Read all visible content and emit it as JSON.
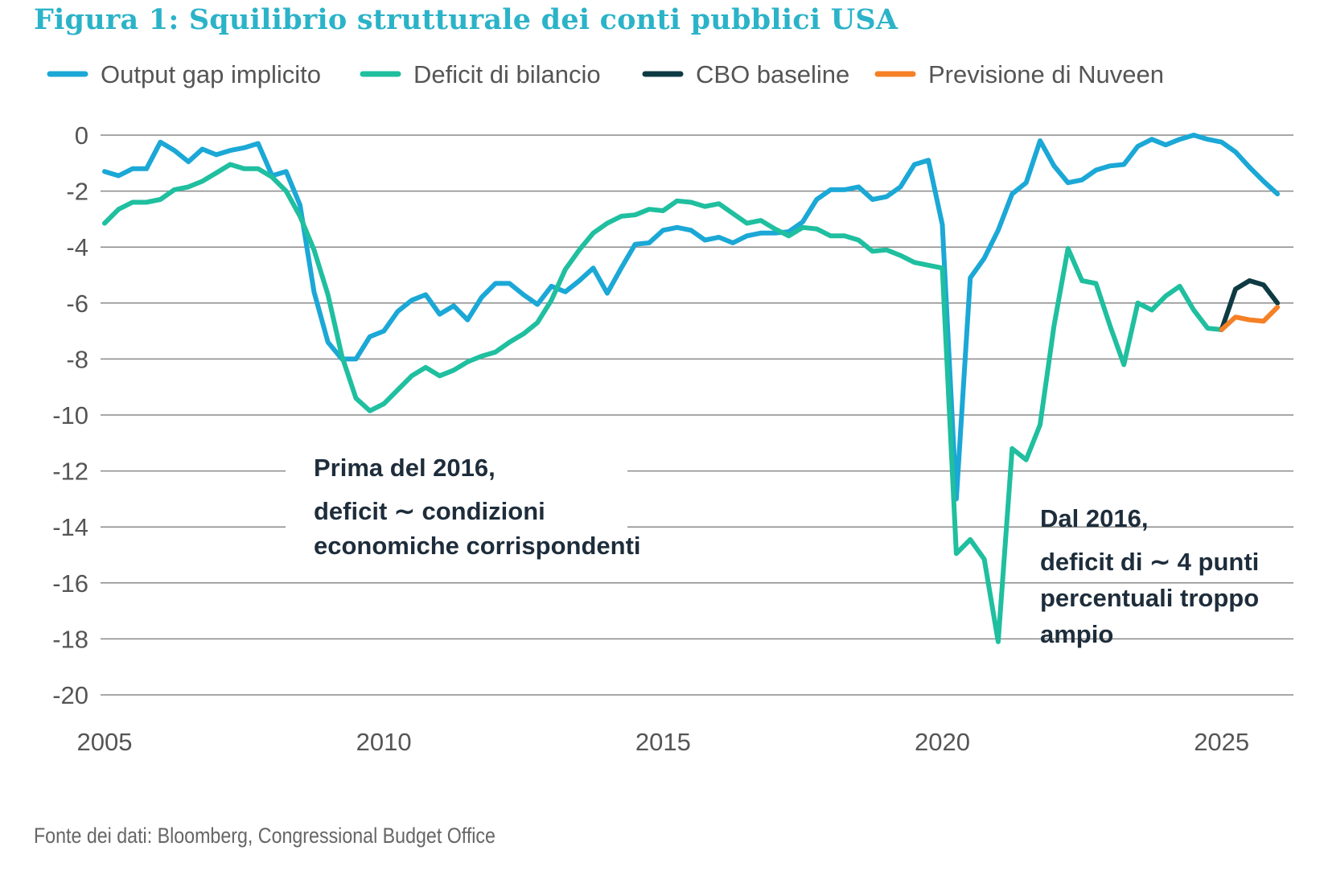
{
  "chart_data": {
    "type": "line",
    "title": "Figura 1: Squilibrio strutturale dei conti pubblici USA",
    "source": "Fonte dei dati: Bloomberg, Congressional Budget Office",
    "xlabel": "",
    "ylabel": "",
    "xlim": [
      2005,
      2026.2
    ],
    "ylim": [
      -20,
      0
    ],
    "x_ticks": [
      "2005",
      "2010",
      "2015",
      "2020",
      "2025"
    ],
    "y_ticks": [
      "0",
      "-2",
      "-4",
      "-6",
      "-8",
      "-10",
      "-12",
      "-14",
      "-16",
      "-18",
      "-20"
    ],
    "grid": "horizontal",
    "legend_position": "top",
    "colors": {
      "title": "#2bb3c8",
      "output_gap": "#1ba8d6",
      "deficit": "#1fbf9f",
      "cbo": "#0e3b43",
      "nuveen": "#f58025",
      "grid": "#8a8a8a"
    },
    "series": [
      {
        "name": "Output gap implicito",
        "color_key": "output_gap",
        "x": [
          2005,
          2005.25,
          2005.5,
          2005.75,
          2006,
          2006.25,
          2006.5,
          2006.75,
          2007,
          2007.25,
          2007.5,
          2007.75,
          2008,
          2008.25,
          2008.5,
          2008.75,
          2009,
          2009.25,
          2009.5,
          2009.75,
          2010,
          2010.25,
          2010.5,
          2010.75,
          2011,
          2011.25,
          2011.5,
          2011.75,
          2012,
          2012.25,
          2012.5,
          2012.75,
          2013,
          2013.25,
          2013.5,
          2013.75,
          2014,
          2014.25,
          2014.5,
          2014.75,
          2015,
          2015.25,
          2015.5,
          2015.75,
          2016,
          2016.25,
          2016.5,
          2016.75,
          2017,
          2017.25,
          2017.5,
          2017.75,
          2018,
          2018.25,
          2018.5,
          2018.75,
          2019,
          2019.25,
          2019.5,
          2019.75,
          2020,
          2020.25,
          2020.5,
          2020.75,
          2021,
          2021.25,
          2021.5,
          2021.75,
          2022,
          2022.25,
          2022.5,
          2022.75,
          2023,
          2023.25,
          2023.5,
          2023.75,
          2024,
          2024.25,
          2024.5,
          2024.75,
          2025,
          2025.25,
          2025.5,
          2025.75,
          2026
        ],
        "values": [
          -1.3,
          -1.45,
          -1.2,
          -1.2,
          -0.25,
          -0.55,
          -0.95,
          -0.5,
          -0.7,
          -0.55,
          -0.45,
          -0.3,
          -1.45,
          -1.3,
          -2.5,
          -5.6,
          -7.4,
          -8.0,
          -8.0,
          -7.2,
          -7.0,
          -6.3,
          -5.9,
          -5.7,
          -6.4,
          -6.1,
          -6.6,
          -5.8,
          -5.3,
          -5.3,
          -5.7,
          -6.05,
          -5.4,
          -5.6,
          -5.2,
          -4.75,
          -5.65,
          -4.75,
          -3.9,
          -3.85,
          -3.4,
          -3.3,
          -3.4,
          -3.75,
          -3.65,
          -3.85,
          -3.6,
          -3.5,
          -3.5,
          -3.45,
          -3.1,
          -2.3,
          -1.95,
          -1.95,
          -1.85,
          -2.3,
          -2.2,
          -1.85,
          -1.05,
          -0.9,
          -3.2,
          -13.0,
          -5.1,
          -4.4,
          -3.4,
          -2.1,
          -1.7,
          -0.2,
          -1.1,
          -1.7,
          -1.6,
          -1.25,
          -1.1,
          -1.05,
          -0.4,
          -0.15,
          -0.35,
          -0.15,
          0.0,
          -0.15,
          -0.25,
          -0.6,
          -1.15,
          -1.65,
          -2.1
        ]
      },
      {
        "name": "Deficit di bilancio",
        "color_key": "deficit",
        "x": [
          2005,
          2005.25,
          2005.5,
          2005.75,
          2006,
          2006.25,
          2006.5,
          2006.75,
          2007,
          2007.25,
          2007.5,
          2007.75,
          2008,
          2008.25,
          2008.5,
          2008.75,
          2009,
          2009.25,
          2009.5,
          2009.75,
          2010,
          2010.25,
          2010.5,
          2010.75,
          2011,
          2011.25,
          2011.5,
          2011.75,
          2012,
          2012.25,
          2012.5,
          2012.75,
          2013,
          2013.25,
          2013.5,
          2013.75,
          2014,
          2014.25,
          2014.5,
          2014.75,
          2015,
          2015.25,
          2015.5,
          2015.75,
          2016,
          2016.25,
          2016.5,
          2016.75,
          2017,
          2017.25,
          2017.5,
          2017.75,
          2018,
          2018.25,
          2018.5,
          2018.75,
          2019,
          2019.25,
          2019.5,
          2019.75,
          2020,
          2020.25,
          2020.5,
          2020.75,
          2021,
          2021.25,
          2021.5,
          2021.75,
          2022,
          2022.25,
          2022.5,
          2022.75,
          2023,
          2023.25,
          2023.5,
          2023.75,
          2024,
          2024.25,
          2024.5,
          2024.75,
          2025
        ],
        "values": [
          -3.15,
          -2.65,
          -2.4,
          -2.4,
          -2.3,
          -1.95,
          -1.85,
          -1.65,
          -1.35,
          -1.05,
          -1.2,
          -1.2,
          -1.5,
          -2.0,
          -2.9,
          -4.1,
          -5.7,
          -7.9,
          -9.4,
          -9.85,
          -9.6,
          -9.1,
          -8.6,
          -8.3,
          -8.6,
          -8.4,
          -8.1,
          -7.9,
          -7.75,
          -7.4,
          -7.1,
          -6.7,
          -5.9,
          -4.8,
          -4.1,
          -3.5,
          -3.15,
          -2.9,
          -2.85,
          -2.65,
          -2.7,
          -2.35,
          -2.4,
          -2.55,
          -2.45,
          -2.8,
          -3.15,
          -3.05,
          -3.35,
          -3.6,
          -3.3,
          -3.35,
          -3.6,
          -3.6,
          -3.75,
          -4.15,
          -4.1,
          -4.3,
          -4.55,
          -4.65,
          -4.75,
          -14.95,
          -14.45,
          -15.15,
          -18.1,
          -11.2,
          -11.6,
          -10.35,
          -6.8,
          -4.05,
          -5.2,
          -5.3,
          -6.8,
          -8.2,
          -6.0,
          -6.25,
          -5.75,
          -5.4,
          -6.25,
          -6.9,
          -6.95
        ]
      },
      {
        "name": "CBO baseline",
        "color_key": "cbo",
        "x": [
          2025,
          2025.25,
          2025.5,
          2025.75,
          2026
        ],
        "values": [
          -6.95,
          -5.5,
          -5.2,
          -5.35,
          -6.0
        ]
      },
      {
        "name": "Previsione di Nuveen",
        "color_key": "nuveen",
        "x": [
          2025,
          2025.25,
          2025.5,
          2025.75,
          2026
        ],
        "values": [
          -6.95,
          -6.5,
          -6.6,
          -6.65,
          -6.15
        ]
      }
    ],
    "annotations": [
      {
        "lines": [
          "Prima del 2016,",
          "deficit ∼ condizioni",
          "economiche corrispondenti"
        ]
      },
      {
        "lines": [
          "Dal 2016,",
          "deficit di ∼ 4 punti",
          "percentuali troppo",
          "ampio"
        ]
      }
    ]
  }
}
